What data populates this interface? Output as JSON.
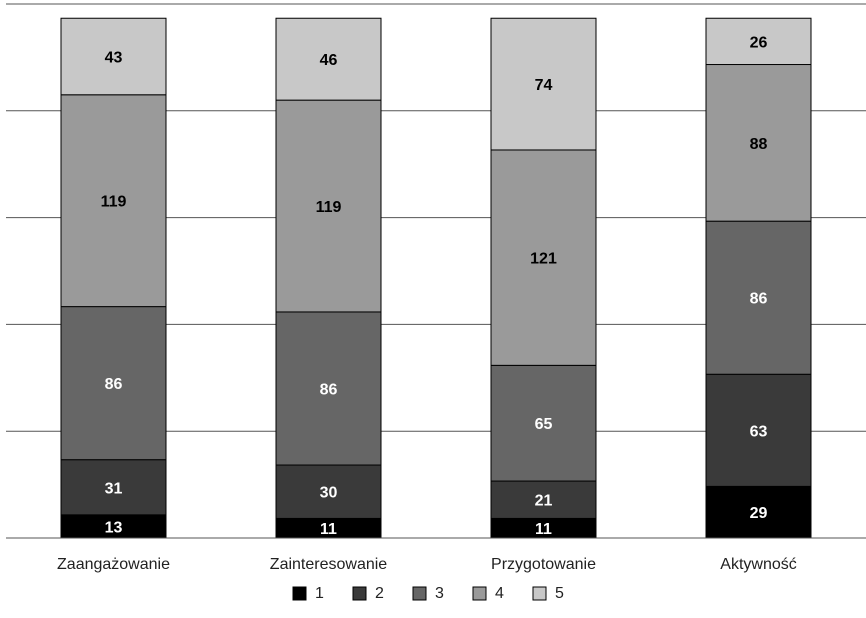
{
  "chart_data": {
    "type": "bar",
    "stacked": true,
    "title": "",
    "xlabel": "",
    "ylabel": "",
    "ylim": [
      0,
      300
    ],
    "grid": true,
    "legend_position": "bottom",
    "categories": [
      "Zaangażowanie",
      "Zainteresowanie",
      "Przygotowanie",
      "Aktywność"
    ],
    "series": [
      {
        "name": "1",
        "color": "#000000",
        "label_color": "#ffffff",
        "values": [
          13,
          11,
          11,
          29
        ]
      },
      {
        "name": "2",
        "color": "#3a3a3a",
        "label_color": "#ffffff",
        "values": [
          31,
          30,
          21,
          63
        ]
      },
      {
        "name": "3",
        "color": "#666666",
        "label_color": "#ffffff",
        "values": [
          86,
          86,
          65,
          86
        ]
      },
      {
        "name": "4",
        "color": "#9a9a9a",
        "label_color": "#000000",
        "values": [
          119,
          119,
          121,
          88
        ]
      },
      {
        "name": "5",
        "color": "#c8c8c8",
        "label_color": "#000000",
        "values": [
          43,
          46,
          74,
          26
        ]
      }
    ]
  }
}
